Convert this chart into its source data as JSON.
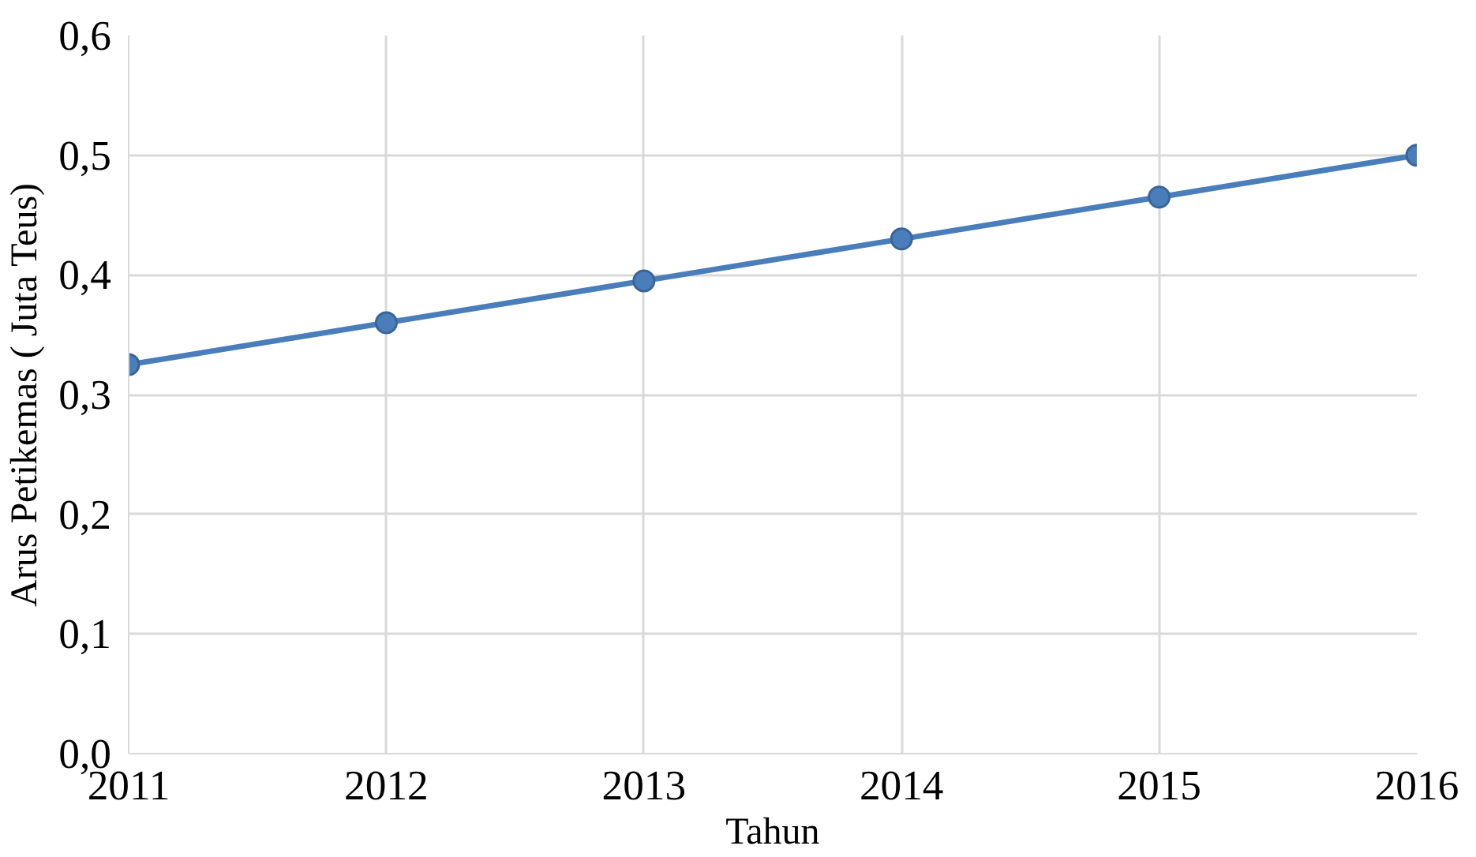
{
  "chart_data": {
    "type": "line",
    "xlabel": "Tahun",
    "ylabel": "Arus Petikemas ( Juta Teus)",
    "x": [
      2011,
      2012,
      2013,
      2014,
      2015,
      2016
    ],
    "series": [
      {
        "color": "#4a7ebb",
        "values": [
          0.325,
          0.36,
          0.395,
          0.43,
          0.465,
          0.5
        ]
      }
    ],
    "xlim": [
      2011,
      2016
    ],
    "xticks": [
      2011,
      2012,
      2013,
      2014,
      2015,
      2016
    ],
    "ylim": [
      0,
      0.6
    ],
    "yticks": [
      {
        "value": 0,
        "label": "0,0"
      },
      {
        "value": 0.1,
        "label": "0,1"
      },
      {
        "value": 0.2,
        "label": "0,2"
      },
      {
        "value": 0.3,
        "label": "0,3"
      },
      {
        "value": 0.4,
        "label": "0,4"
      },
      {
        "value": 0.5,
        "label": "0,5"
      },
      {
        "value": 0.6,
        "label": "0,6"
      }
    ],
    "grid": true,
    "marker": "circle",
    "line_style": "solid"
  }
}
